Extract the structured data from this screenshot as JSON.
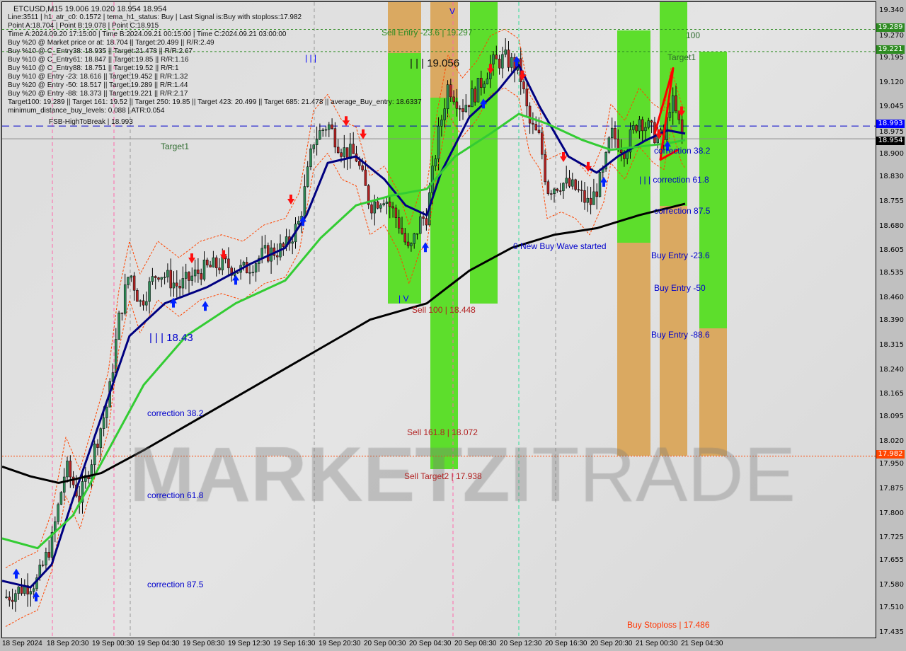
{
  "header": {
    "symbol_line": "ETCUSD,M15  19.006 19.020 18.954 18.954",
    "lines": [
      "Line:3511 | h1_atr_c0: 0.1572 | tema_h1_status: Buy | Last Signal is:Buy with stoploss:17.982",
      "Point A:18.704 | Point B:19.078 | Point C:18.915",
      "Time A:2024.09.20 17:15:00 | Time B:2024.09.21 00:15:00 | Time C:2024.09.21 03:00:00",
      "Buy %20 @ Market price or at: 18.704 || Target:20.499 || R/R:2.49",
      "Buy %10 @ C_Entry38: 18.935 || Target:21.478 || R/R:2.67",
      "Buy %10 @ C_Entry61: 18.847 || Target:19.85 || R/R:1.16",
      "Buy %10 @ C_Entry88: 18.751 || Target:19.52 || R/R:1",
      "Buy %10 @ Entry -23: 18.616 || Target:19.452 || R/R:1.32",
      "Buy %20 @ Entry -50: 18.517 || Target:19.289 || R/R:1.44",
      "Buy %20 @ Entry -88: 18.373 || Target:19.221 || R/R:2.17",
      "Target100: 19.289 || Target 161: 19.52 || Target 250: 19.85 || Target 423: 20.499 || Target 685: 21.478 || average_Buy_entry: 18.6337",
      "minimum_distance_buy_levels: 0.088 | ATR:0.054"
    ],
    "fsb": "FSB-HighToBreak | 18.993"
  },
  "watermark": {
    "bold": "MARKETZI",
    "light": "TRADE"
  },
  "annotations": {
    "sell_entry": "Sell Entry -23.6 | 19.297",
    "level_19056": "| | | 19.056",
    "sell_100": "Sell 100 | 18.448",
    "sell_161": "Sell 161.8 | 18.072",
    "sell_target2": "Sell Target2 | 17.938",
    "target1_left": "Target1",
    "target1_right": "Target1",
    "hundred": "100",
    "level_1843": "| | | 18.43",
    "corr382_left": "correction 38.2",
    "corr618_left": "correction 61.8",
    "corr875_left": "correction 87.5",
    "corr382_right": "correction 38.2",
    "corr618_right": "| | | correction 61.8",
    "corr875_right": "correction 87.5",
    "new_wave": "0 New Buy Wave started",
    "buy_entry_236": "Buy Entry -23.6",
    "buy_entry_50": "Buy Entry -50",
    "buy_entry_886": "Buy Entry -88.6",
    "buy_stoploss": "Buy Stoploss | 17.486",
    "bars_top": "| | |",
    "v_mark1": "V",
    "v_mark2": "| V"
  },
  "chart_data": {
    "type": "candlestick",
    "symbol": "ETCUSD",
    "timeframe": "M15",
    "ohlc_last": {
      "open": 19.006,
      "high": 19.02,
      "low": 18.954,
      "close": 18.954
    },
    "ylim": [
      17.435,
      19.34
    ],
    "y_ticks": [
      "19.340",
      "19.270",
      "19.195",
      "19.120",
      "19.045",
      "18.975",
      "18.900",
      "18.830",
      "18.755",
      "18.680",
      "18.605",
      "18.535",
      "18.460",
      "18.390",
      "18.315",
      "18.240",
      "18.165",
      "18.095",
      "18.020",
      "17.950",
      "17.875",
      "17.800",
      "17.725",
      "17.655",
      "17.580",
      "17.510",
      "17.435"
    ],
    "x_ticks": [
      "18 Sep 2024",
      "18 Sep 20:30",
      "19 Sep 00:30",
      "19 Sep 04:30",
      "19 Sep 08:30",
      "19 Sep 12:30",
      "19 Sep 16:30",
      "19 Sep 20:30",
      "20 Sep 00:30",
      "20 Sep 04:30",
      "20 Sep 08:30",
      "20 Sep 12:30",
      "20 Sep 16:30",
      "20 Sep 20:30",
      "21 Sep 00:30",
      "21 Sep 04:30"
    ],
    "price_badges": [
      {
        "value": "19.289",
        "color": "#2e8b22"
      },
      {
        "value": "19.221",
        "color": "#2e8b22"
      },
      {
        "value": "18.993",
        "color": "#0000ff"
      },
      {
        "value": "18.954",
        "color": "#000000"
      },
      {
        "value": "17.982",
        "color": "#ff4500"
      }
    ],
    "levels": {
      "target100": 19.289,
      "target1": 19.221,
      "fsb_high": 18.993,
      "bid": 18.954,
      "stoploss": 17.982
    },
    "colors": {
      "zone_green": "#55dd22",
      "zone_orange": "#d9a55a",
      "ma_fast": "#000080",
      "ma_mid": "#33cc33",
      "ma_slow": "#000000",
      "up_candle": "#2e8b57",
      "down_candle": "#b22222"
    }
  }
}
